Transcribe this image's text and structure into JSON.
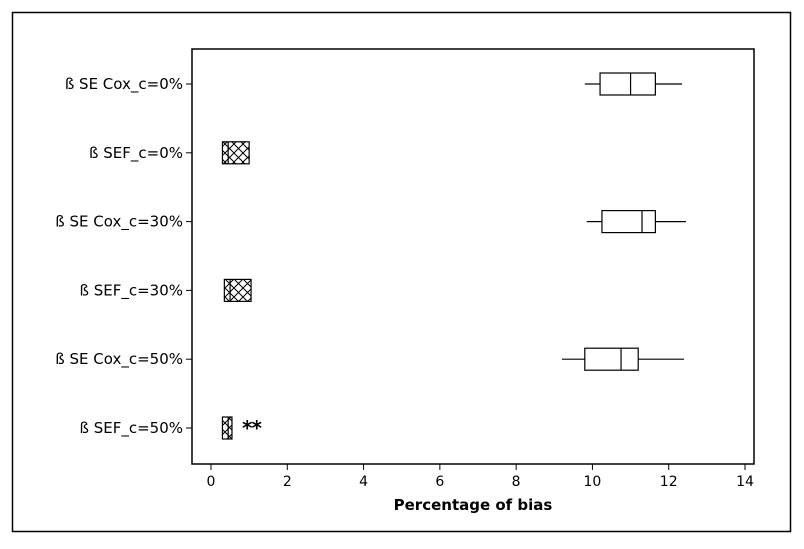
{
  "chart_data": {
    "type": "boxplot",
    "orientation": "horizontal",
    "xlabel": "Percentage of bias",
    "xlim": [
      0,
      14
    ],
    "xticks": [
      0,
      2,
      4,
      6,
      8,
      10,
      12,
      14
    ],
    "xtick_labels": [
      "0",
      "2",
      "4",
      "6",
      "8",
      "10",
      "12",
      "14"
    ],
    "grid": false,
    "legend": "none",
    "categories": [
      "ß SE Cox_c=0%",
      "ß SEF_c=0%",
      "ß SE Cox_c=30%",
      "ß SEF_c=30%",
      "ß SE Cox_c=50%",
      "ß SEF_c=50%"
    ],
    "boxes": [
      {
        "whisker_low": 9.8,
        "q1": 10.2,
        "median": 11.0,
        "q3": 11.65,
        "whisker_high": 12.35,
        "fill": "none",
        "outliers": []
      },
      {
        "whisker_low": 0.3,
        "q1": 0.3,
        "median": 0.45,
        "q3": 1.0,
        "whisker_high": 1.0,
        "fill": "crosshatch",
        "outliers": []
      },
      {
        "whisker_low": 9.85,
        "q1": 10.25,
        "median": 11.3,
        "q3": 11.65,
        "whisker_high": 12.45,
        "fill": "none",
        "outliers": []
      },
      {
        "whisker_low": 0.35,
        "q1": 0.35,
        "median": 0.5,
        "q3": 1.05,
        "whisker_high": 1.05,
        "fill": "crosshatch",
        "outliers": []
      },
      {
        "whisker_low": 9.2,
        "q1": 9.8,
        "median": 10.75,
        "q3": 11.2,
        "whisker_high": 12.4,
        "fill": "none",
        "outliers": []
      },
      {
        "whisker_low": 0.3,
        "q1": 0.3,
        "median": 0.45,
        "q3": 0.55,
        "whisker_high": 0.55,
        "fill": "crosshatch",
        "outliers": [
          0.95,
          1.2
        ]
      }
    ]
  }
}
